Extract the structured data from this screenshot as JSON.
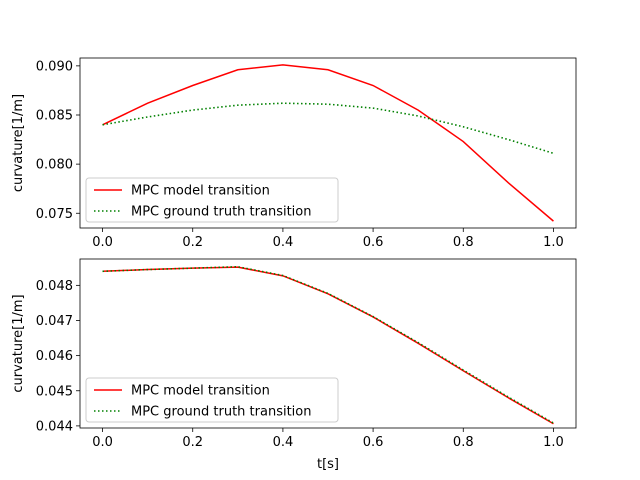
{
  "chart_data": [
    {
      "type": "line",
      "xlabel": "",
      "ylabel": "curvature[1/m]",
      "xlim": [
        -0.05,
        1.05
      ],
      "ylim": [
        0.0735,
        0.0908
      ],
      "xticks": [
        "0.0",
        "0.2",
        "0.4",
        "0.6",
        "0.8",
        "1.0"
      ],
      "yticks": [
        "0.075",
        "0.080",
        "0.085",
        "0.090"
      ],
      "legend_position": "lower-left",
      "series": [
        {
          "name": "MPC model transition",
          "color": "#ff0000",
          "style": "solid",
          "x": [
            0.0,
            0.1,
            0.2,
            0.3,
            0.4,
            0.5,
            0.6,
            0.7,
            0.8,
            0.9,
            1.0
          ],
          "y": [
            0.084,
            0.0862,
            0.088,
            0.0896,
            0.0901,
            0.0896,
            0.088,
            0.0855,
            0.0823,
            0.0781,
            0.0742
          ]
        },
        {
          "name": "MPC ground truth transition",
          "color": "#008000",
          "style": "dotted",
          "x": [
            0.0,
            0.1,
            0.2,
            0.3,
            0.4,
            0.5,
            0.6,
            0.7,
            0.8,
            0.9,
            1.0
          ],
          "y": [
            0.084,
            0.0848,
            0.0855,
            0.086,
            0.0862,
            0.0861,
            0.0857,
            0.0849,
            0.0838,
            0.0825,
            0.0811
          ]
        }
      ]
    },
    {
      "type": "line",
      "xlabel": "t[s]",
      "ylabel": "curvature[1/m]",
      "xlim": [
        -0.05,
        1.05
      ],
      "ylim": [
        0.04394,
        0.04875
      ],
      "xticks": [
        "0.0",
        "0.2",
        "0.4",
        "0.6",
        "0.8",
        "1.0"
      ],
      "yticks": [
        "0.044",
        "0.045",
        "0.046",
        "0.047",
        "0.048"
      ],
      "legend_position": "lower-left",
      "series": [
        {
          "name": "MPC model transition",
          "color": "#ff0000",
          "style": "solid",
          "x": [
            0.0,
            0.1,
            0.2,
            0.3,
            0.4,
            0.5,
            0.6,
            0.7,
            0.8,
            0.9,
            1.0
          ],
          "y": [
            0.0484,
            0.04845,
            0.04849,
            0.04852,
            0.04827,
            0.04776,
            0.0471,
            0.04635,
            0.04557,
            0.0448,
            0.04406
          ]
        },
        {
          "name": "MPC ground truth transition",
          "color": "#008000",
          "style": "dotted",
          "x": [
            0.0,
            0.1,
            0.2,
            0.3,
            0.4,
            0.5,
            0.6,
            0.7,
            0.8,
            0.9,
            1.0
          ],
          "y": [
            0.0484,
            0.04845,
            0.04849,
            0.04853,
            0.04828,
            0.04777,
            0.04711,
            0.04637,
            0.04559,
            0.04482,
            0.04408
          ]
        }
      ]
    }
  ]
}
